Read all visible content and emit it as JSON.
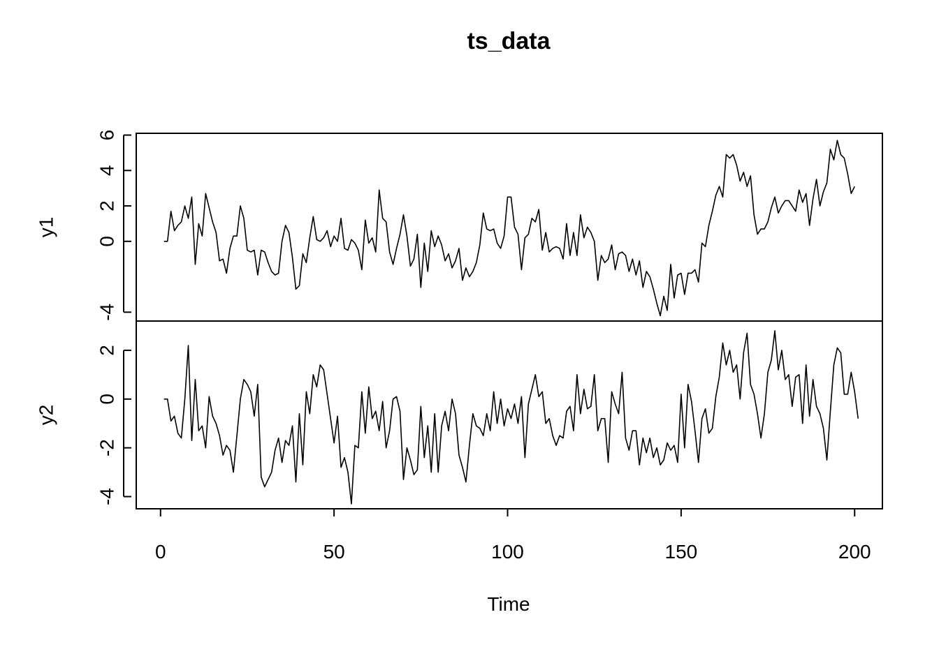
{
  "chart_data": {
    "type": "line",
    "title": "ts_data",
    "xlabel": "Time",
    "xlim": [
      -7,
      208
    ],
    "xticks": [
      0,
      50,
      100,
      150,
      200
    ],
    "grid": false,
    "x_start": 1,
    "panels": [
      {
        "name": "y1",
        "ylabel": "y1",
        "ylim": [
          -4.5,
          6.1
        ],
        "yticks": [
          -4,
          0,
          2,
          4,
          6
        ],
        "yticks_labels": [
          "-4",
          "0",
          "2",
          "4",
          "6"
        ],
        "values": [
          0.0,
          0.0,
          1.7,
          0.6,
          0.9,
          1.1,
          2.0,
          1.3,
          2.5,
          -1.3,
          1.0,
          0.3,
          2.7,
          1.9,
          1.1,
          0.5,
          -1.1,
          -1.0,
          -1.8,
          -0.4,
          0.3,
          0.3,
          2.0,
          1.3,
          -0.5,
          -0.6,
          -0.5,
          -1.9,
          -0.5,
          -0.6,
          -1.2,
          -1.7,
          -1.9,
          -1.8,
          0.0,
          0.9,
          0.5,
          -0.9,
          -2.7,
          -2.5,
          -0.7,
          -1.2,
          0.2,
          1.4,
          0.1,
          0.0,
          0.2,
          0.6,
          -0.3,
          0.3,
          0.0,
          1.3,
          -0.4,
          -0.5,
          0.1,
          -0.1,
          -0.5,
          -1.6,
          1.2,
          -0.1,
          0.2,
          -0.6,
          2.9,
          1.3,
          1.1,
          -0.6,
          -1.3,
          -0.4,
          0.4,
          1.5,
          0.3,
          -1.4,
          -1.0,
          0.4,
          -2.6,
          -0.1,
          -1.7,
          0.6,
          -0.3,
          0.3,
          -0.2,
          -1.1,
          -0.7,
          -1.5,
          -1.1,
          -0.4,
          -2.2,
          -1.5,
          -2.0,
          -1.7,
          -1.2,
          -0.2,
          1.6,
          0.7,
          0.6,
          0.7,
          -0.1,
          -0.4,
          0.3,
          2.5,
          2.5,
          0.8,
          0.4,
          -1.6,
          0.2,
          0.4,
          1.3,
          1.1,
          1.8,
          -0.5,
          0.5,
          -0.6,
          -0.4,
          -0.3,
          -0.4,
          -1.0,
          1.0,
          -0.8,
          0.5,
          -0.8,
          1.5,
          0.2,
          0.8,
          0.5,
          0.0,
          -2.2,
          -0.8,
          -1.2,
          -1.0,
          -0.2,
          -1.6,
          -0.7,
          -0.6,
          -0.8,
          -1.7,
          -1.0,
          -1.9,
          -1.1,
          -2.6,
          -1.7,
          -2.0,
          -2.7,
          -3.5,
          -4.2,
          -3.1,
          -3.9,
          -1.3,
          -3.2,
          -1.9,
          -1.8,
          -3.0,
          -1.8,
          -1.8,
          -1.6,
          -2.3,
          -0.1,
          -0.3,
          0.9,
          1.7,
          2.6,
          3.1,
          2.5,
          4.9,
          4.7,
          4.9,
          4.3,
          3.4,
          3.9,
          3.1,
          3.7,
          1.5,
          0.4,
          0.7,
          0.7,
          1.1,
          1.9,
          2.5,
          1.6,
          2.0,
          2.3,
          2.3,
          2.0,
          1.7,
          2.9,
          2.2,
          2.7,
          0.9,
          2.4,
          3.5,
          2.0,
          2.8,
          3.3,
          5.2,
          4.6,
          5.7,
          4.9,
          4.7,
          3.8,
          2.7,
          3.1
        ]
      },
      {
        "name": "y2",
        "ylabel": "y2",
        "ylim": [
          -4.5,
          3.2
        ],
        "yticks": [
          -4,
          -2,
          0,
          2
        ],
        "yticks_labels": [
          "-4",
          "-2",
          "0",
          "2"
        ],
        "values": [
          0.0,
          0.0,
          -0.9,
          -0.7,
          -1.4,
          -1.6,
          0.0,
          2.2,
          -1.7,
          0.8,
          -1.3,
          -1.1,
          -2.0,
          0.1,
          -0.7,
          -1.0,
          -1.5,
          -2.3,
          -1.9,
          -2.1,
          -3.0,
          -1.5,
          0.0,
          0.8,
          0.6,
          0.3,
          -0.7,
          0.6,
          -3.2,
          -3.6,
          -3.3,
          -3.0,
          -2.1,
          -1.6,
          -2.6,
          -1.7,
          -1.9,
          -1.1,
          -3.4,
          -0.6,
          -2.7,
          0.3,
          -0.6,
          1.0,
          0.5,
          1.4,
          1.2,
          0.2,
          -0.8,
          -1.8,
          -0.7,
          -2.8,
          -2.4,
          -3.0,
          -4.3,
          -1.9,
          -2.0,
          0.3,
          -1.4,
          0.5,
          -0.8,
          -0.5,
          -1.3,
          -0.1,
          -2.0,
          -1.3,
          0.0,
          0.1,
          -0.5,
          -3.3,
          -2.0,
          -2.5,
          -3.1,
          -2.9,
          -0.3,
          -2.4,
          -1.1,
          -3.0,
          -0.6,
          -3.0,
          -1.1,
          -0.5,
          -1.3,
          0.0,
          -0.6,
          -2.3,
          -2.8,
          -3.4,
          -1.9,
          -0.6,
          -1.1,
          -1.2,
          -1.5,
          -0.6,
          -1.3,
          0.3,
          -1.0,
          0.0,
          -1.1,
          -0.4,
          -0.8,
          -0.2,
          -1.0,
          0.1,
          -2.4,
          -0.2,
          0.4,
          1.0,
          0.1,
          0.3,
          -1.0,
          -0.8,
          -1.5,
          -1.9,
          -1.5,
          -1.6,
          -0.5,
          -0.3,
          -1.3,
          1.0,
          -0.6,
          0.4,
          -0.4,
          -0.3,
          1.0,
          -1.3,
          -0.8,
          -0.8,
          -2.6,
          0.3,
          -0.2,
          -0.6,
          1.1,
          -1.6,
          -2.1,
          -1.3,
          -1.3,
          -2.7,
          -1.6,
          -2.2,
          -1.6,
          -2.4,
          -2.0,
          -2.7,
          -2.5,
          -1.8,
          -2.1,
          -1.9,
          -2.6,
          0.2,
          -2.0,
          0.6,
          -0.1,
          -1.3,
          -2.6,
          -0.8,
          -0.4,
          -1.4,
          -1.2,
          0.1,
          0.9,
          2.3,
          1.4,
          2.0,
          1.1,
          1.4,
          0.0,
          1.9,
          2.7,
          0.6,
          0.2,
          -0.6,
          -1.6,
          -0.6,
          1.1,
          1.6,
          2.8,
          1.2,
          2.0,
          0.8,
          1.0,
          -0.3,
          0.9,
          1.0,
          -1.0,
          1.4,
          -0.7,
          0.8,
          -0.3,
          -0.6,
          -1.2,
          -2.5,
          -0.5,
          1.4,
          2.1,
          1.9,
          0.2,
          0.2,
          1.1,
          0.3,
          -0.8
        ]
      }
    ]
  }
}
